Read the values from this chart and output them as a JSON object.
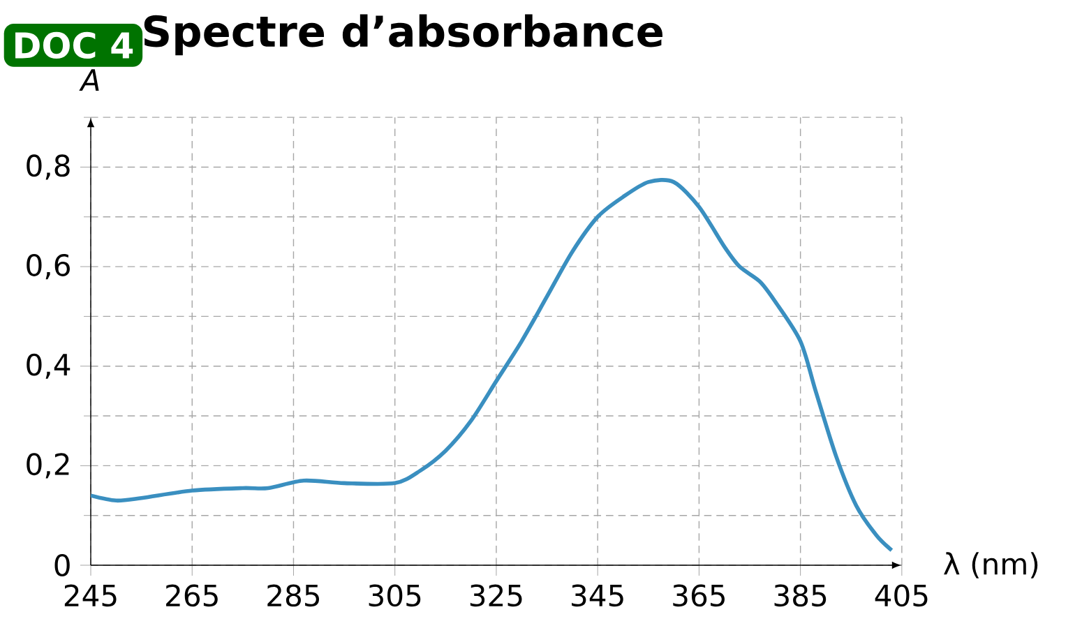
{
  "chart_data": {
    "type": "line",
    "title": "Spectre d’absorbance",
    "annotations": [
      "DOC 4"
    ],
    "xlabel": "λ (nm)",
    "ylabel": "A",
    "xlim": [
      245,
      405
    ],
    "ylim": [
      0,
      0.9
    ],
    "xticks": [
      245,
      265,
      285,
      305,
      325,
      345,
      365,
      385,
      405
    ],
    "yticks": [
      {
        "value": 0,
        "label": "0"
      },
      {
        "value": 0.2,
        "label": "0,2"
      },
      {
        "value": 0.4,
        "label": "0,4"
      },
      {
        "value": 0.6,
        "label": "0,6"
      },
      {
        "value": 0.8,
        "label": "0,8"
      }
    ],
    "grid": true,
    "marker": "none",
    "line_style": "solid",
    "series": [
      {
        "color": "#3a8fc0",
        "x": [
          245,
          250,
          255,
          265,
          275,
          280,
          287,
          295,
          305,
          310,
          315,
          320,
          325,
          330,
          335,
          340,
          345,
          350,
          355,
          360,
          365,
          370,
          373,
          377,
          380,
          385,
          388,
          392,
          396,
          400,
          403
        ],
        "values": [
          0.14,
          0.13,
          0.135,
          0.15,
          0.155,
          0.155,
          0.17,
          0.165,
          0.165,
          0.19,
          0.23,
          0.29,
          0.37,
          0.45,
          0.54,
          0.63,
          0.7,
          0.74,
          0.77,
          0.77,
          0.72,
          0.64,
          0.6,
          0.57,
          0.53,
          0.45,
          0.35,
          0.22,
          0.12,
          0.06,
          0.03
        ]
      }
    ]
  }
}
